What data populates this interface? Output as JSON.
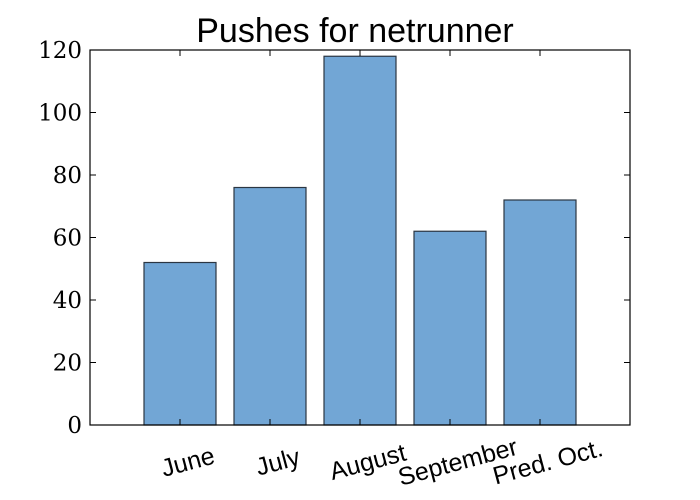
{
  "chart_data": {
    "type": "bar",
    "title": "Pushes for netrunner",
    "categories": [
      "June",
      "July",
      "August",
      "September",
      "Pred. Oct."
    ],
    "values": [
      52,
      76,
      118,
      62,
      72
    ],
    "xlabel": "",
    "ylabel": "",
    "ylim": [
      0,
      120
    ],
    "yticks": [
      0,
      20,
      40,
      60,
      80,
      100,
      120
    ],
    "grid": false,
    "legend": "none",
    "colors": {
      "bar_fill": "#72a6d5",
      "bar_edge": "#2b3642",
      "axes": "#000000"
    }
  }
}
